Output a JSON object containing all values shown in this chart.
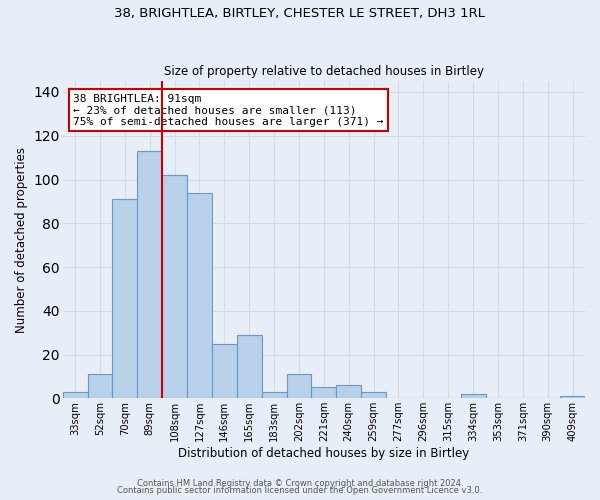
{
  "title": "38, BRIGHTLEA, BIRTLEY, CHESTER LE STREET, DH3 1RL",
  "subtitle": "Size of property relative to detached houses in Birtley",
  "xlabel": "Distribution of detached houses by size in Birtley",
  "ylabel": "Number of detached properties",
  "bar_color": "#b8d0e8",
  "bar_edge_color": "#6699cc",
  "background_color": "#e8eef5",
  "grid_color": "#d0dce8",
  "bins": [
    "33sqm",
    "52sqm",
    "70sqm",
    "89sqm",
    "108sqm",
    "127sqm",
    "146sqm",
    "165sqm",
    "183sqm",
    "202sqm",
    "221sqm",
    "240sqm",
    "259sqm",
    "277sqm",
    "296sqm",
    "315sqm",
    "334sqm",
    "353sqm",
    "371sqm",
    "390sqm",
    "409sqm"
  ],
  "values": [
    3,
    11,
    91,
    113,
    102,
    94,
    25,
    29,
    3,
    11,
    5,
    6,
    3,
    0,
    0,
    0,
    2,
    0,
    0,
    0,
    1
  ],
  "ylim": [
    0,
    145
  ],
  "yticks": [
    0,
    20,
    40,
    60,
    80,
    100,
    120,
    140
  ],
  "vline_color": "#cc0000",
  "annotation_line1": "38 BRIGHTLEA: 91sqm",
  "annotation_line2": "← 23% of detached houses are smaller (113)",
  "annotation_line3": "75% of semi-detached houses are larger (371) →",
  "annotation_box_color": "#ffffff",
  "annotation_box_edge": "#cc0000",
  "footer1": "Contains HM Land Registry data © Crown copyright and database right 2024.",
  "footer2": "Contains public sector information licensed under the Open Government Licence v3.0."
}
